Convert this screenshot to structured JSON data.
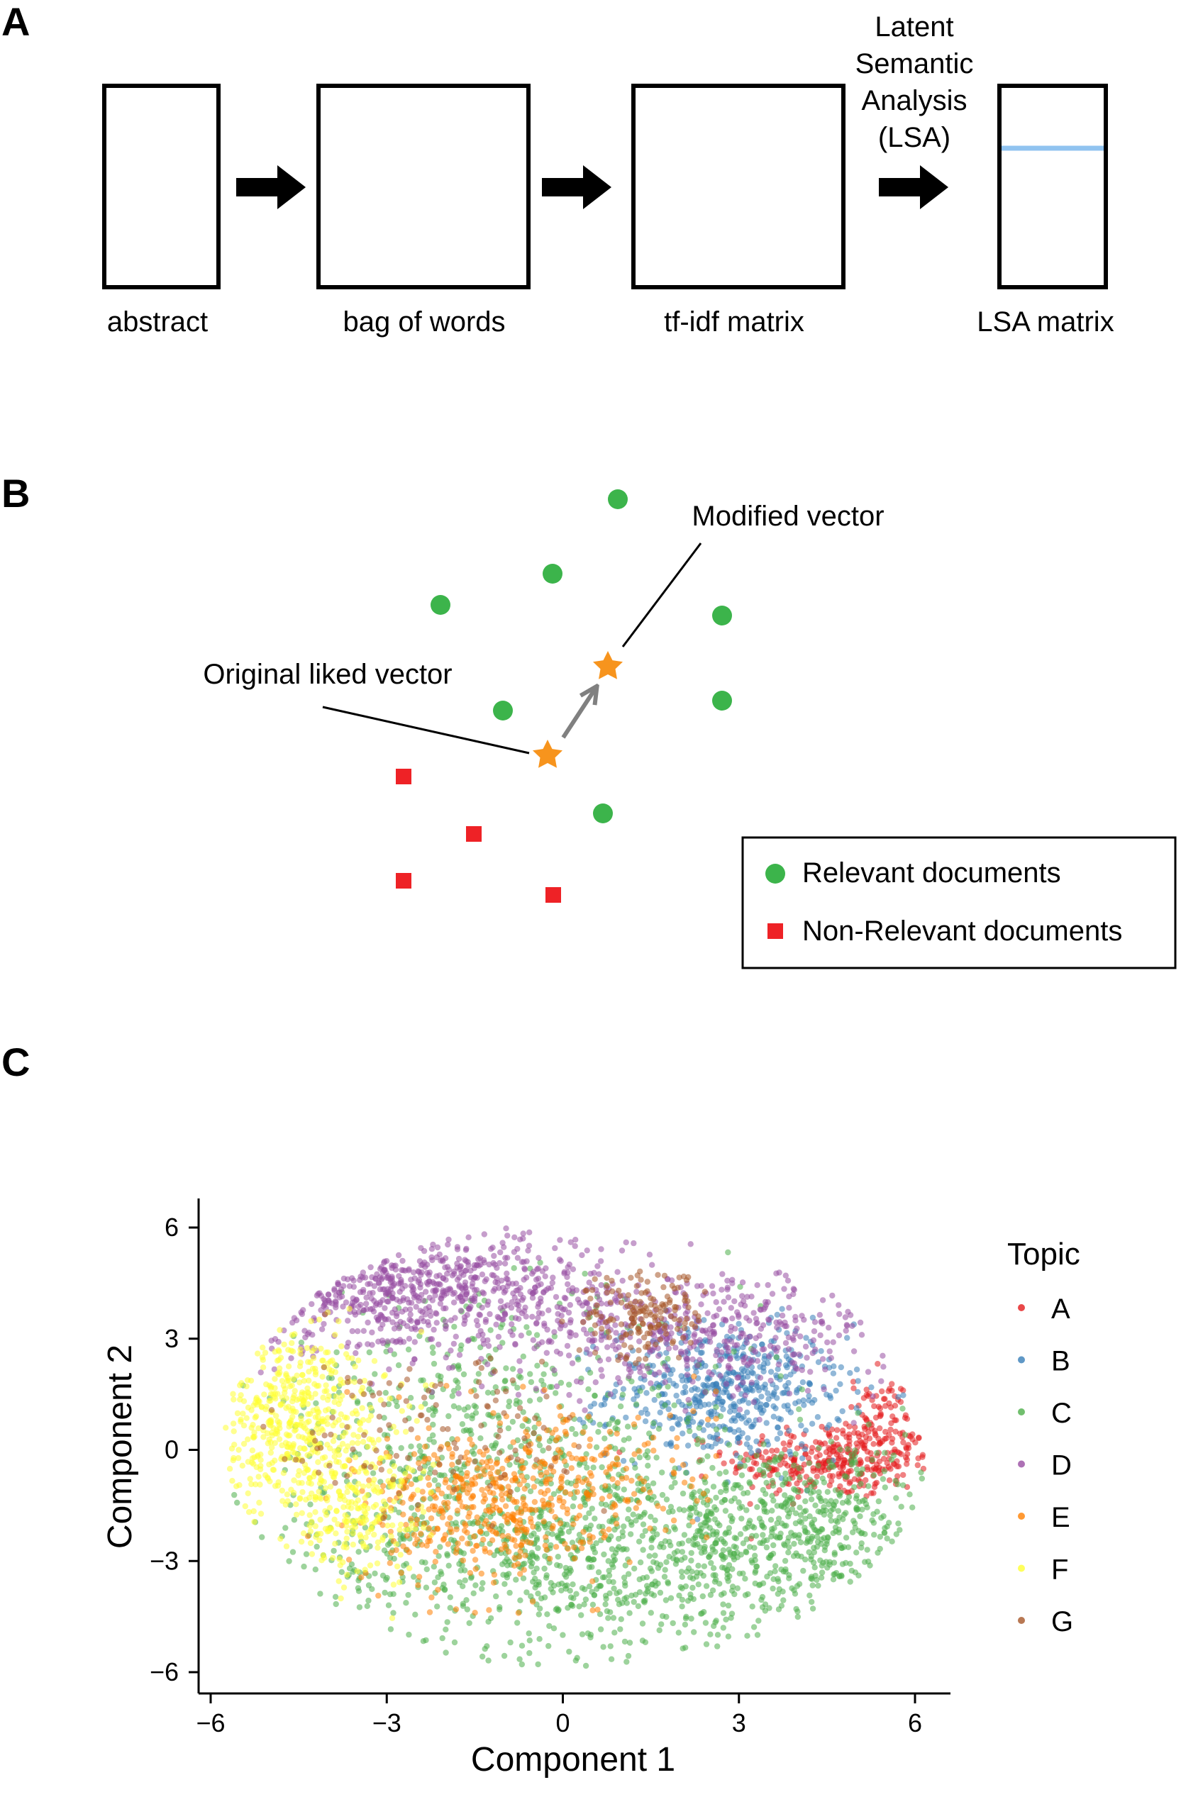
{
  "panel_a": {
    "letter": "A",
    "boxes": [
      {
        "label": "abstract"
      },
      {
        "label": "bag of words"
      },
      {
        "label": "tf-idf matrix"
      },
      {
        "label": "LSA matrix"
      }
    ],
    "lsa_step": [
      "Latent",
      "Semantic",
      "Analysis",
      "(LSA)"
    ],
    "lsa_line_color": "#90c3f0"
  },
  "panel_b": {
    "letter": "B",
    "annotation_modified": "Modified vector",
    "annotation_original": "Original liked vector",
    "legend": {
      "relevant": "Relevant documents",
      "non_relevant": "Non-Relevant documents"
    },
    "colors": {
      "relevant": "#3cb44b",
      "non_relevant": "#ee2226",
      "star": "#f7941d",
      "arrow": "#808080"
    }
  },
  "panel_c": {
    "letter": "C",
    "chart_data": {
      "type": "scatter",
      "xlabel": "Component 1",
      "ylabel": "Component 2",
      "xlim": [
        -6.5,
        6.5
      ],
      "ylim": [
        -6.5,
        6.8
      ],
      "xticks": [
        {
          "v": -6,
          "label": "−6"
        },
        {
          "v": -3,
          "label": "−3"
        },
        {
          "v": 0,
          "label": "0"
        },
        {
          "v": 3,
          "label": "3"
        },
        {
          "v": 6,
          "label": "6"
        }
      ],
      "yticks": [
        {
          "v": 6,
          "label": "6"
        },
        {
          "v": 3,
          "label": "3"
        },
        {
          "v": 0,
          "label": "0"
        },
        {
          "v": -3,
          "label": "−3"
        },
        {
          "v": -6,
          "label": "−6"
        }
      ],
      "legend_title": "Topic",
      "legend_placement": "right",
      "series": [
        {
          "name": "A",
          "color": "#e41a1c",
          "clusters": [
            {
              "cx": 4.6,
              "cy": -0.3,
              "sx": 0.9,
              "sy": 0.5,
              "n": 320
            },
            {
              "cx": 5.4,
              "cy": 0.8,
              "sx": 0.3,
              "sy": 0.6,
              "n": 80
            }
          ]
        },
        {
          "name": "B",
          "color": "#377eb8",
          "clusters": [
            {
              "cx": 2.8,
              "cy": 1.6,
              "sx": 1.0,
              "sy": 0.9,
              "n": 520
            }
          ]
        },
        {
          "name": "C",
          "color": "#4daf4a",
          "clusters": [
            {
              "cx": 1.0,
              "cy": -2.8,
              "sx": 2.8,
              "sy": 1.4,
              "n": 1100
            },
            {
              "cx": 4.2,
              "cy": -1.8,
              "sx": 1.2,
              "sy": 1.0,
              "n": 300
            },
            {
              "cx": -1.2,
              "cy": 0.8,
              "sx": 2.2,
              "sy": 1.6,
              "n": 450
            }
          ]
        },
        {
          "name": "D",
          "color": "#984ea3",
          "clusters": [
            {
              "cx": -2.6,
              "cy": 4.3,
              "sx": 1.8,
              "sy": 0.8,
              "n": 700
            },
            {
              "cx": 2.4,
              "cy": 3.1,
              "sx": 1.6,
              "sy": 0.8,
              "n": 420
            }
          ]
        },
        {
          "name": "E",
          "color": "#ff7f00",
          "clusters": [
            {
              "cx": -1.4,
              "cy": -1.6,
              "sx": 1.0,
              "sy": 1.0,
              "n": 360
            },
            {
              "cx": 0.2,
              "cy": -0.6,
              "sx": 1.2,
              "sy": 1.0,
              "n": 200
            }
          ]
        },
        {
          "name": "F",
          "color": "#ffff33",
          "clusters": [
            {
              "cx": -4.6,
              "cy": 0.8,
              "sx": 0.8,
              "sy": 1.3,
              "n": 520
            },
            {
              "cx": -3.5,
              "cy": -1.8,
              "sx": 0.6,
              "sy": 0.8,
              "n": 180
            }
          ]
        },
        {
          "name": "G",
          "color": "#a65628",
          "clusters": [
            {
              "cx": 1.4,
              "cy": 3.6,
              "sx": 0.5,
              "sy": 0.6,
              "n": 160
            },
            {
              "cx": -2.0,
              "cy": 0.6,
              "sx": 1.4,
              "sy": 1.2,
              "n": 120
            }
          ]
        }
      ]
    }
  }
}
